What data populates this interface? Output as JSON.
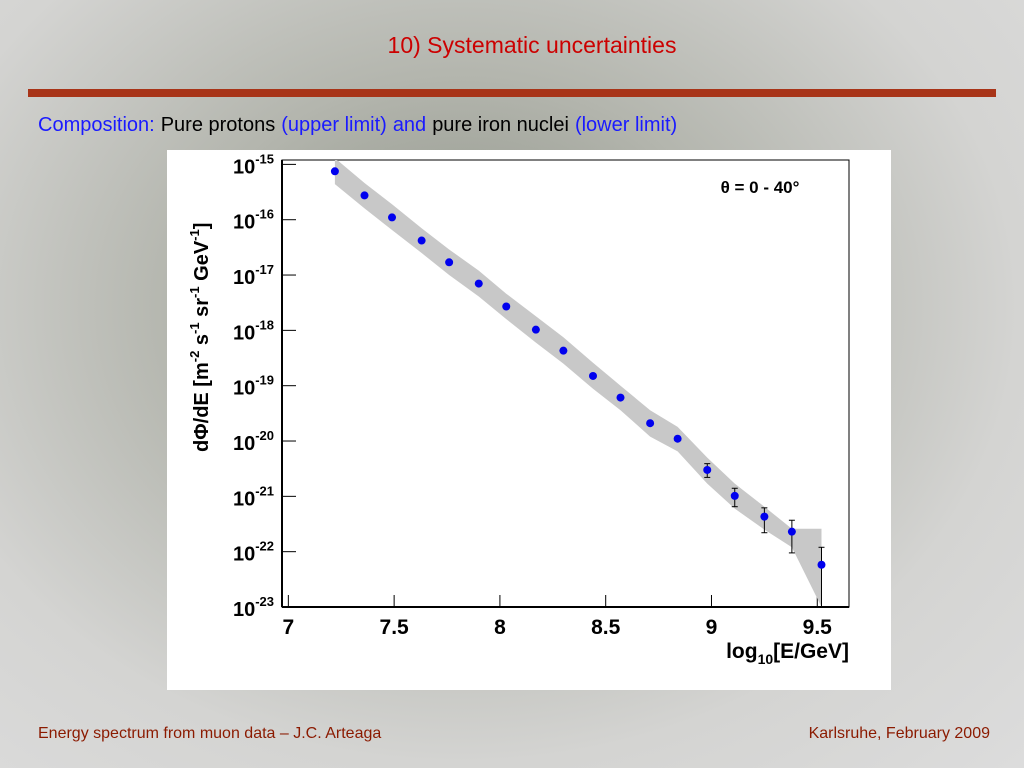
{
  "slide": {
    "title": "10) Systematic uncertainties",
    "subtitle": [
      {
        "text": "Composition:",
        "color": "#1a1aff"
      },
      {
        "text": "Pure protons",
        "color": "#000000"
      },
      {
        "text": "(upper limit)",
        "color": "#1a1aff"
      },
      {
        "text": "and",
        "color": "#1a1aff"
      },
      {
        "text": "pure iron nuclei",
        "color": "#000000"
      },
      {
        "text": "(lower limit)",
        "color": "#1a1aff"
      }
    ],
    "footer_left": "Energy spectrum from muon data – J.C. Arteaga",
    "footer_right": "Karlsruhe,  February 2009"
  },
  "chart_data": {
    "type": "scatter",
    "annotation": "θ = 0 - 40°",
    "xlabel_parts": [
      "log",
      "10",
      "[E/GeV]"
    ],
    "ylabel_parts": [
      "dΦ/dE [m",
      "-2",
      " s",
      "-1",
      " sr",
      "-1",
      " GeV",
      "-1",
      "]"
    ],
    "xlim": [
      6.97,
      9.65
    ],
    "ylim": [
      1e-23,
      1.2e-15
    ],
    "ylog": true,
    "xticks": [
      7,
      {
        "value": 7.5,
        "label": "7.5"
      },
      8,
      {
        "value": 8.5,
        "label": "8.5"
      },
      9,
      {
        "value": 9.5,
        "label": "9.5"
      }
    ],
    "yticks": [
      {
        "value": 1e-15,
        "label": "10",
        "exponent": "-15"
      },
      {
        "value": 1e-16,
        "label": "10",
        "exponent": "-16"
      },
      {
        "value": 1e-17,
        "label": "10",
        "exponent": "-17"
      },
      {
        "value": 1e-18,
        "label": "10",
        "exponent": "-18"
      },
      {
        "value": 1e-19,
        "label": "10",
        "exponent": "-19"
      },
      {
        "value": 1e-20,
        "label": "10",
        "exponent": "-20"
      },
      {
        "value": 1e-21,
        "label": "10",
        "exponent": "-21"
      },
      {
        "value": 1e-22,
        "label": "10",
        "exponent": "-22"
      },
      {
        "value": 1e-23,
        "label": "10",
        "exponent": "-23"
      }
    ],
    "band": {
      "color": "#c8c8c8",
      "x": [
        7.22,
        7.36,
        7.49,
        7.63,
        7.76,
        7.9,
        8.03,
        8.17,
        8.3,
        8.44,
        8.57,
        8.71,
        8.84,
        8.98,
        9.11,
        9.25,
        9.38,
        9.52
      ],
      "upper": [
        1.3e-15,
        4.6e-16,
        1.9e-16,
        7e-17,
        2.9e-17,
        1.2e-17,
        4.6e-18,
        1.8e-18,
        7.5e-19,
        2.6e-19,
        1e-19,
        3.6e-20,
        1.8e-20,
        5e-21,
        1.7e-21,
        6.5e-22,
        2.6e-22,
        2.6e-22
      ],
      "lower": [
        4.4e-16,
        1.6e-16,
        6.5e-17,
        2.5e-17,
        1e-17,
        4.1e-18,
        1.6e-18,
        6e-19,
        2.5e-19,
        8.8e-20,
        3.6e-20,
        1.2e-20,
        6.5e-21,
        1.7e-21,
        6e-22,
        2.5e-22,
        1.2e-22,
        1e-23
      ]
    },
    "series": [
      {
        "color": "#0000ee",
        "x": [
          7.22,
          7.36,
          7.49,
          7.63,
          7.76,
          7.9,
          8.03,
          8.17,
          8.3,
          8.44,
          8.57,
          8.71,
          8.84,
          8.98,
          9.11,
          9.25,
          9.38,
          9.52
        ],
        "values": [
          7.5e-16,
          2.75e-16,
          1.1e-16,
          4.2e-17,
          1.7e-17,
          7e-18,
          2.7e-18,
          1.03e-18,
          4.3e-19,
          1.5e-19,
          6.1e-20,
          2.1e-20,
          1.1e-20,
          3e-21,
          1.02e-21,
          4.3e-22,
          2.3e-22,
          5.8e-23
        ],
        "upper": [
          null,
          null,
          null,
          null,
          null,
          null,
          null,
          null,
          null,
          null,
          null,
          null,
          null,
          3.9e-21,
          1.4e-21,
          6.2e-22,
          3.7e-22,
          1.2e-22
        ],
        "lower": [
          null,
          null,
          null,
          null,
          null,
          null,
          null,
          null,
          null,
          null,
          null,
          null,
          null,
          2.2e-21,
          6.5e-22,
          2.2e-22,
          9.5e-23,
          1e-23
        ]
      }
    ]
  }
}
